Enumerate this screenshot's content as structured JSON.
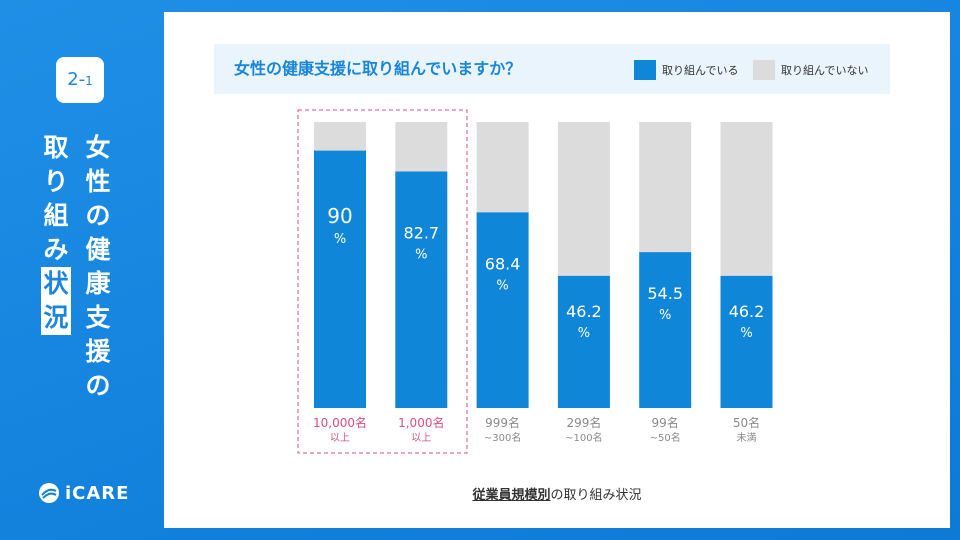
{
  "sidebar": {
    "badge_main": "2-",
    "badge_sub": "1",
    "title_col1": [
      "女",
      "性",
      "の",
      "健",
      "康",
      "支",
      "援",
      "の"
    ],
    "title_col2": [
      "取",
      "り",
      "組",
      "み"
    ],
    "title_col2_highlight": [
      "状",
      "況"
    ],
    "logo_text": "iCARE"
  },
  "header": {
    "question": "女性の健康支援に取り組んでいますか？",
    "legend_yes": "取り組んでいる",
    "legend_no": "取り組んでいない"
  },
  "colors": {
    "yes": "#0f86d8",
    "no": "#dcdcdc",
    "highlight": "#d94f7f",
    "label": "#8a8a8a"
  },
  "chart_data": {
    "type": "bar",
    "stacked": true,
    "title": "女性の健康支援に取り組んでいますか？",
    "xlabel": "従業員規模別の取り組み状況",
    "ylabel": "",
    "ylim": [
      0,
      100
    ],
    "legend": "top-right",
    "categories": [
      {
        "line1": "10,000名",
        "line2": "以上",
        "highlight": true
      },
      {
        "line1": "1,000名",
        "line2": "以上",
        "highlight": true
      },
      {
        "line1": "999名",
        "line2": "~300名",
        "highlight": false
      },
      {
        "line1": "299名",
        "line2": "~100名",
        "highlight": false
      },
      {
        "line1": "99名",
        "line2": "~50名",
        "highlight": false
      },
      {
        "line1": "50名",
        "line2": "未満",
        "highlight": false
      }
    ],
    "series": [
      {
        "name": "取り組んでいる",
        "values": [
          90,
          82.7,
          68.4,
          46.2,
          54.5,
          46.2
        ]
      },
      {
        "name": "取り組んでいない",
        "values": [
          10,
          17.3,
          31.6,
          53.8,
          45.5,
          53.8
        ]
      }
    ],
    "value_labels": [
      "90",
      "82.7",
      "68.4",
      "46.2",
      "54.5",
      "46.2"
    ],
    "unit": "%"
  },
  "footnote": {
    "bold": "従業員規模別",
    "rest": "の取り組み状況"
  }
}
